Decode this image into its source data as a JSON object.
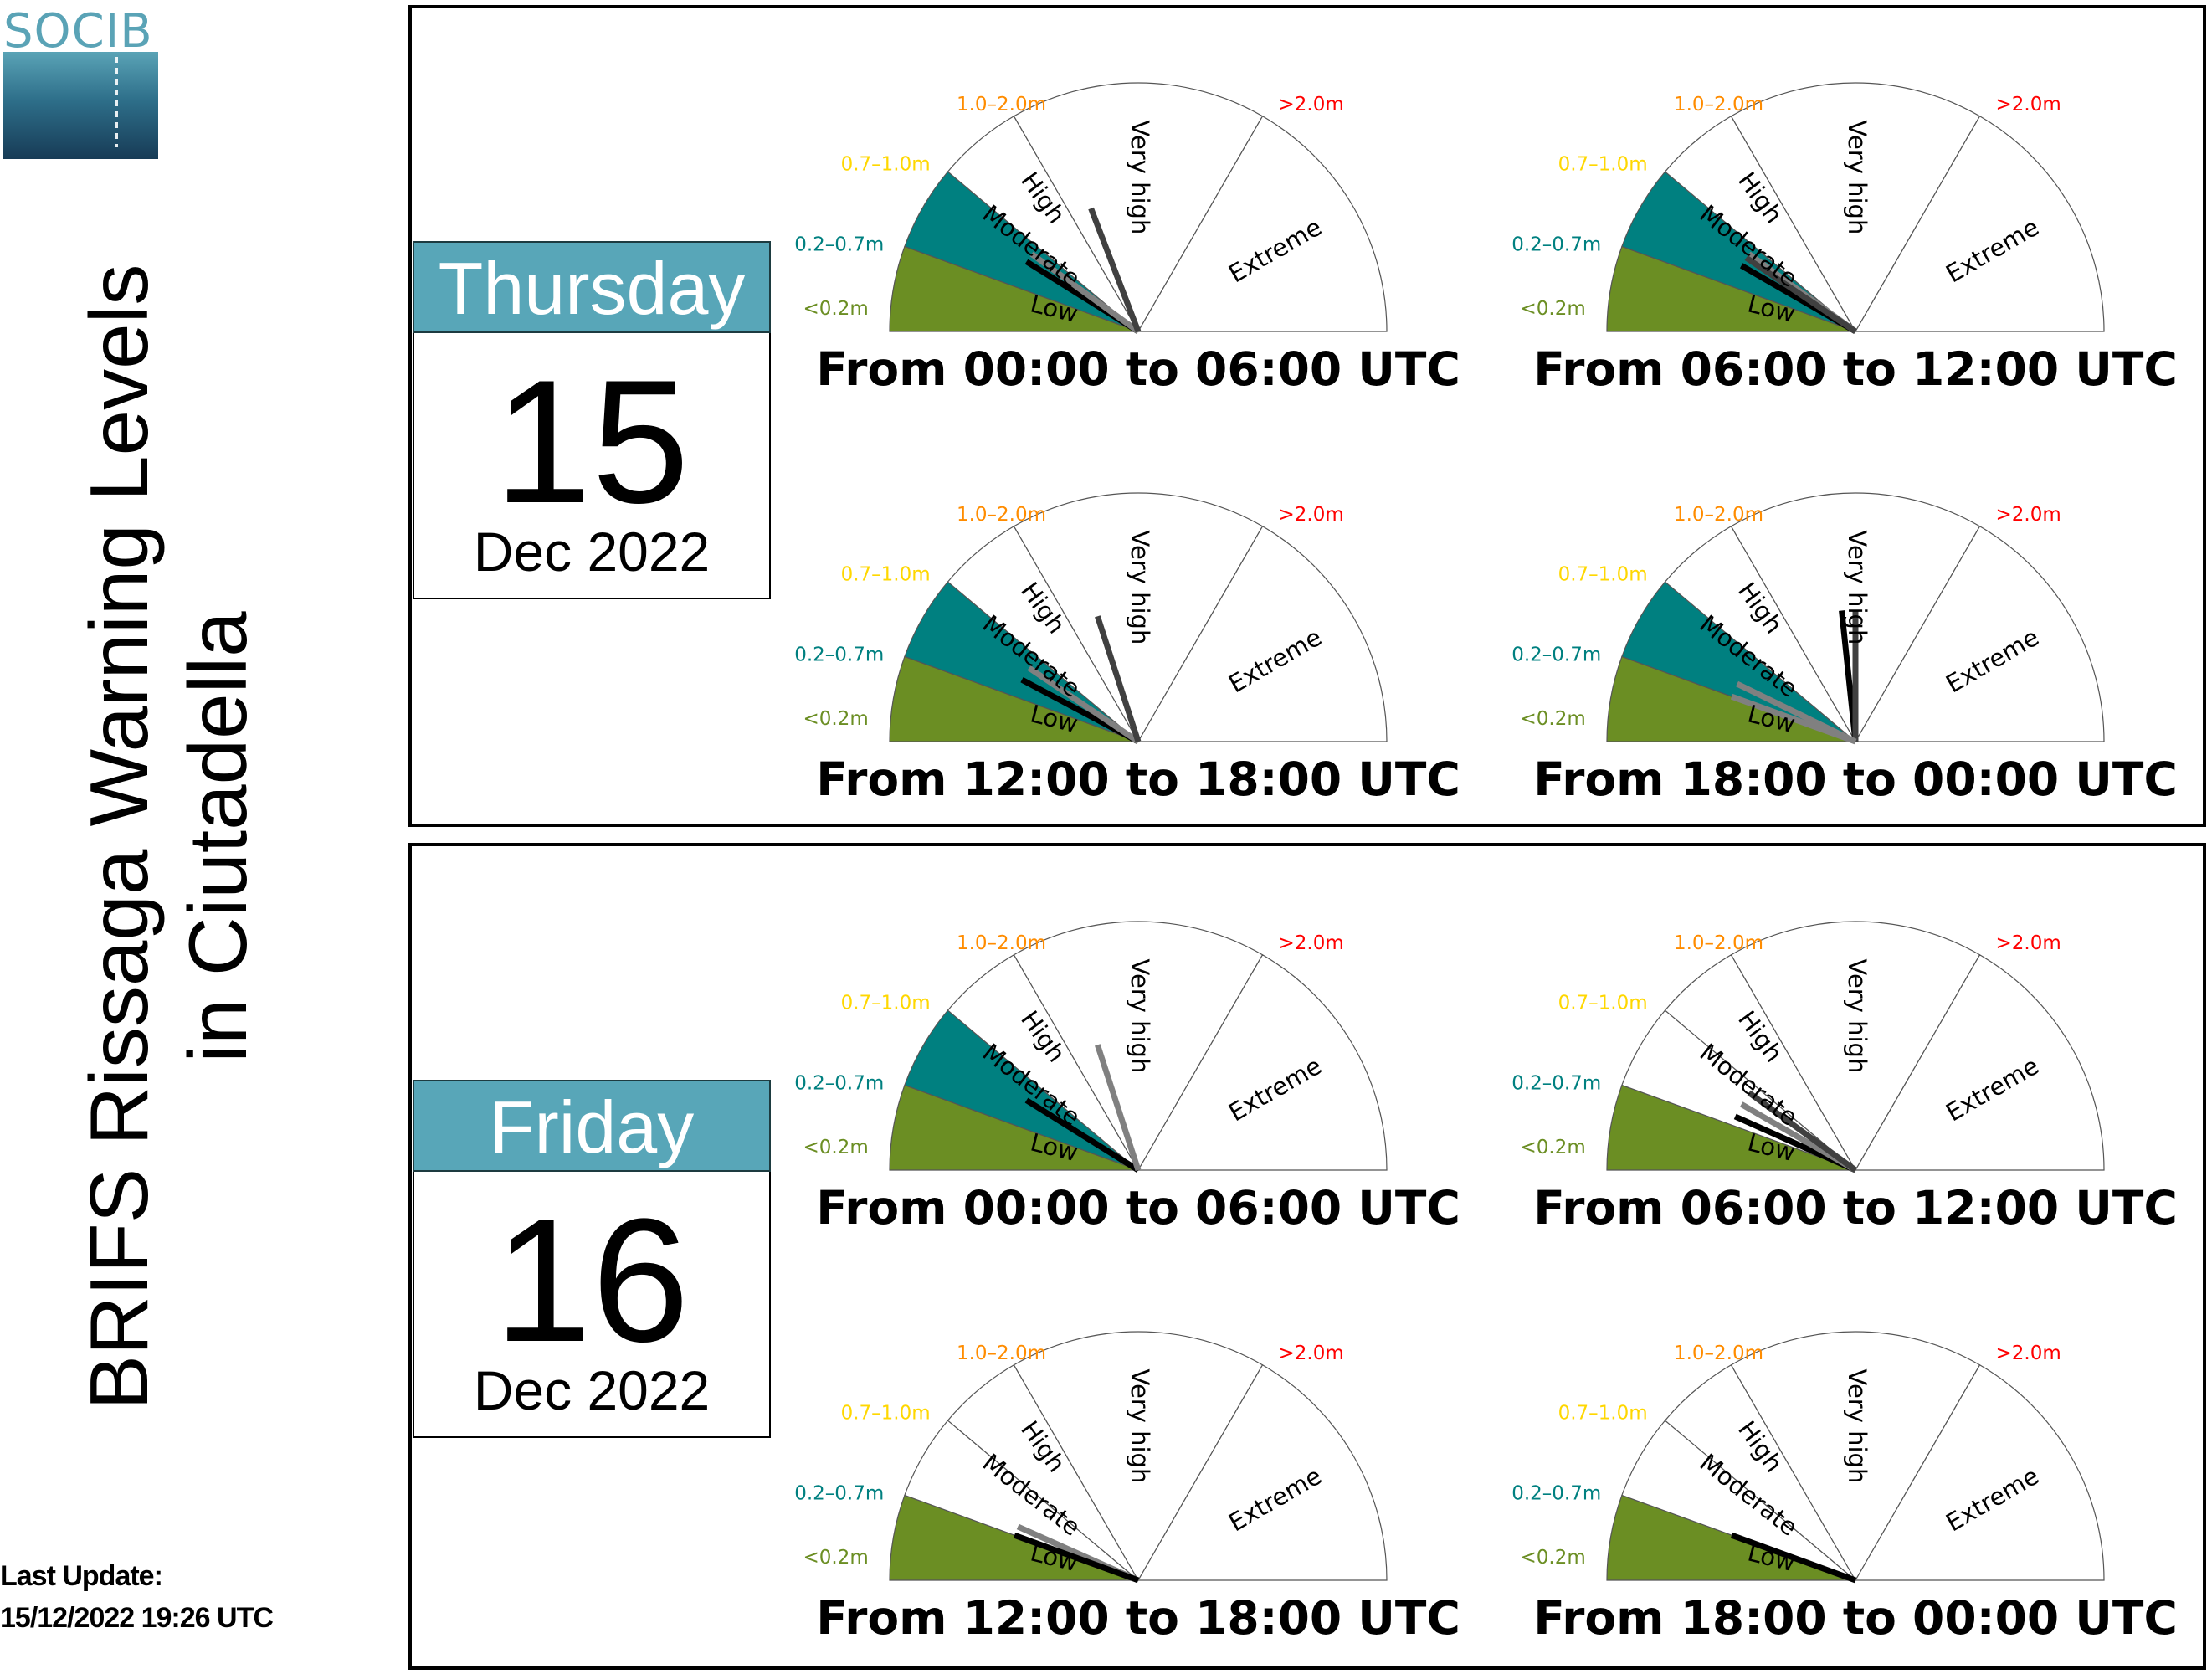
{
  "logo": {
    "text": "SOCIB"
  },
  "title": {
    "line1": "BRIFS Rissaga Warning Levels",
    "line2": "in Ciutadella"
  },
  "update": {
    "label": "Last Update:",
    "value": "15/12/2022 19:26 UTC"
  },
  "colors": {
    "low": "#6b8e23",
    "moderate": "#008080",
    "header": "#58a6b8",
    "threshold_low": "#6b8e23",
    "threshold_moderate": "#008080",
    "threshold_high": "#ffd700",
    "threshold_very_high": "#ff8c00",
    "threshold_extreme": "#ff0000"
  },
  "segment_labels": [
    "Low",
    "Moderate",
    "High",
    "Very high",
    "Extreme"
  ],
  "threshold_labels": [
    "<0.2m",
    "0.2–0.7m",
    "0.7–1.0m",
    "1.0–2.0m",
    ">2.0m"
  ],
  "chart_data": [
    {
      "type": "gauge",
      "day": "Thursday",
      "date_number": "15",
      "month_year": "Dec 2022",
      "periods": [
        {
          "caption": "From 00:00 to 06:00 UTC",
          "highlighted_level": "Moderate",
          "needles": [
            {
              "color": "#000000",
              "value": 0.5
            },
            {
              "color": "#808080",
              "value": 0.6
            },
            {
              "color": "#404040",
              "value": 1.15
            }
          ]
        },
        {
          "caption": "From 06:00 to 12:00 UTC",
          "highlighted_level": "Moderate",
          "needles": [
            {
              "color": "#000000",
              "value": 0.45
            },
            {
              "color": "#808080",
              "value": 0.6
            },
            {
              "color": "#404040",
              "value": 0.55
            }
          ]
        },
        {
          "caption": "From 12:00 to 18:00 UTC",
          "highlighted_level": "Moderate",
          "needles": [
            {
              "color": "#000000",
              "value": 0.4
            },
            {
              "color": "#808080",
              "value": 0.55
            },
            {
              "color": "#404040",
              "value": 1.2
            }
          ]
        },
        {
          "caption": "From 18:00 to 00:00 UTC",
          "highlighted_level": "Moderate",
          "needles": [
            {
              "color": "#000000",
              "value": 1.4
            },
            {
              "color": "#404040",
              "value": 1.5
            },
            {
              "color": "#808080",
              "value": 0.2
            },
            {
              "color": "#808080",
              "value": 0.35
            }
          ]
        }
      ]
    },
    {
      "type": "gauge",
      "day": "Friday",
      "date_number": "16",
      "month_year": "Dec 2022",
      "periods": [
        {
          "caption": "From 00:00 to 06:00 UTC",
          "highlighted_level": "Moderate",
          "needles": [
            {
              "color": "#000000",
              "value": 0.5
            },
            {
              "color": "#808080",
              "value": 1.2
            }
          ]
        },
        {
          "caption": "From 06:00 to 12:00 UTC",
          "highlighted_level": "Low",
          "needles": [
            {
              "color": "#000000",
              "value": 0.3
            },
            {
              "color": "#808080",
              "value": 0.45
            },
            {
              "color": "#404040",
              "value": 0.6
            }
          ]
        },
        {
          "caption": "From 12:00 to 18:00 UTC",
          "highlighted_level": "Low",
          "needles": [
            {
              "color": "#808080",
              "value": 0.3
            },
            {
              "color": "#000000",
              "value": 0.2
            }
          ]
        },
        {
          "caption": "From 18:00 to 00:00 UTC",
          "highlighted_level": "Low",
          "needles": [
            {
              "color": "#000000",
              "value": 0.2
            }
          ]
        }
      ]
    }
  ]
}
